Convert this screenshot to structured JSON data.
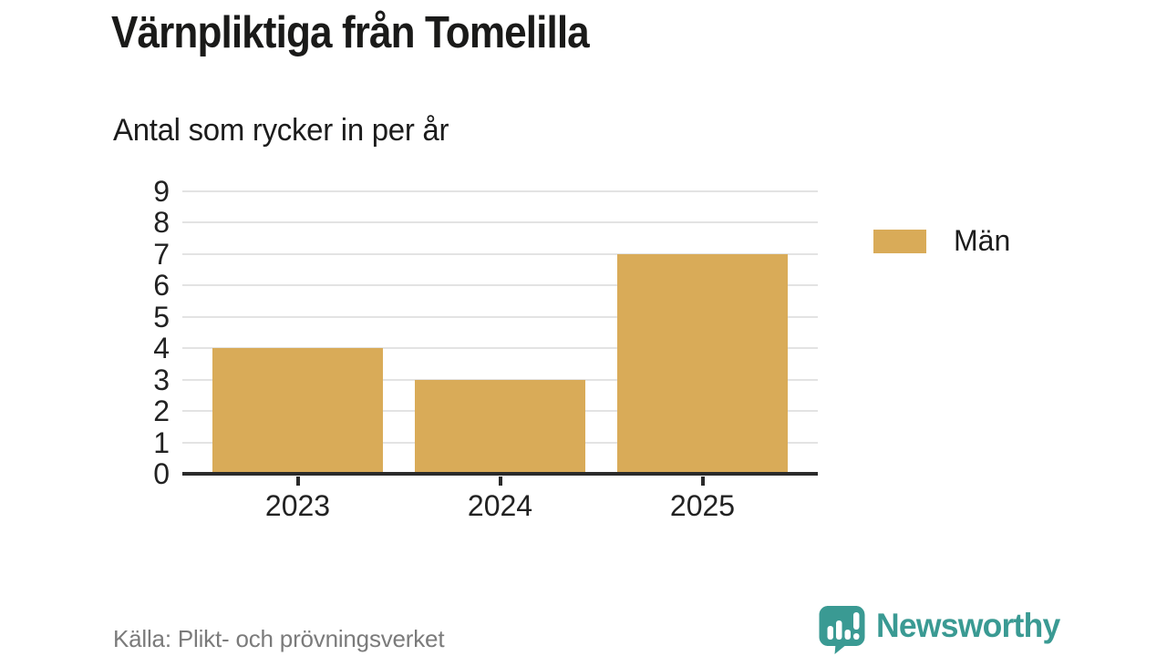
{
  "title": "Värnpliktiga från Tomelilla",
  "subtitle": "Antal som rycker in per år",
  "source": "Källa: Plikt- och prövningsverket",
  "branding": {
    "name": "Newsworthy",
    "color": "#3a9a93",
    "icon": "newsworthy-speech-bubble-barchart-icon"
  },
  "colors": {
    "bar": "#d9ab58",
    "gridline": "#e3e3e3",
    "axis": "#2b2b2b",
    "text": "#1c1c1c",
    "muted_text": "#7b7b7b",
    "brand_teal": "#3a9a93",
    "background": "#ffffff"
  },
  "legend": {
    "items": [
      {
        "label": "Män",
        "color": "#d9ab58"
      }
    ]
  },
  "chart_data": {
    "type": "bar",
    "title": "Värnpliktiga från Tomelilla",
    "subtitle": "Antal som rycker in per år",
    "categories": [
      "2023",
      "2024",
      "2025"
    ],
    "series": [
      {
        "name": "Män",
        "color": "#d9ab58",
        "values": [
          4,
          3,
          7
        ]
      }
    ],
    "xlabel": "",
    "ylabel": "",
    "ylim": [
      0,
      9
    ],
    "yticks": [
      0,
      1,
      2,
      3,
      4,
      5,
      6,
      7,
      8,
      9
    ],
    "grid": true,
    "legend_position": "right",
    "source": "Källa: Plikt- och prövningsverket"
  }
}
